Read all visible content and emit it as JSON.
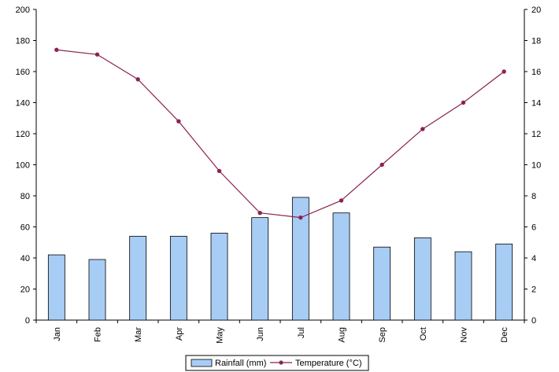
{
  "chart_data": {
    "type": "bar",
    "categories": [
      "Jan",
      "Feb",
      "Mar",
      "Apr",
      "May",
      "Jun",
      "Jul",
      "Aug",
      "Sep",
      "Oct",
      "Nov",
      "Dec"
    ],
    "series": [
      {
        "name": "Rainfall (mm)",
        "type": "bar",
        "axis": "left",
        "color": "#a8cdf5",
        "values": [
          42,
          39,
          54,
          54,
          56,
          66,
          79,
          69,
          47,
          53,
          44,
          49
        ]
      },
      {
        "name": "Temperature (°C)",
        "type": "line",
        "axis": "right",
        "color": "#8b2252",
        "values": [
          17.4,
          17.1,
          15.5,
          12.8,
          9.6,
          6.9,
          6.6,
          7.7,
          10.0,
          12.3,
          14.0,
          16.0
        ]
      }
    ],
    "y_left": {
      "min": 0,
      "max": 200,
      "step": 20,
      "ticks": [
        "0",
        "20",
        "40",
        "60",
        "80",
        "100",
        "120",
        "140",
        "160",
        "180",
        "200"
      ]
    },
    "y_right": {
      "min": 0,
      "max": 20,
      "step": 2,
      "ticks": [
        "0",
        "2",
        "4",
        "6",
        "8",
        "10",
        "12",
        "14",
        "16",
        "18",
        "20"
      ]
    },
    "grid": false,
    "legend": "bottom"
  }
}
